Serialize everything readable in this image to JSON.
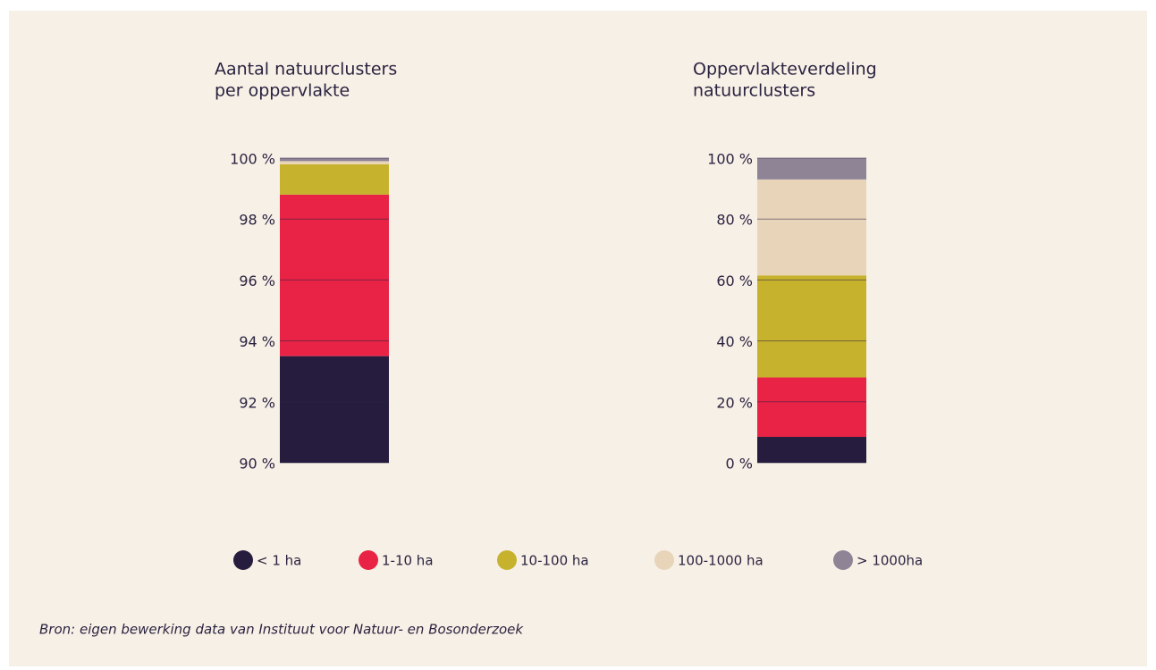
{
  "chart_data": {
    "type": "bar",
    "stacked": true,
    "series": [
      {
        "name": "< 1 ha",
        "color": "#261d3e",
        "values": [
          93.5,
          8.5
        ]
      },
      {
        "name": "1-10 ha",
        "color": "#e92345",
        "values": [
          5.3,
          19.5
        ]
      },
      {
        "name": "10-100 ha",
        "color": "#c7b22e",
        "values": [
          1.0,
          33.5
        ]
      },
      {
        "name": "100-1000 ha",
        "color": "#e8d5b9",
        "values": [
          0.1,
          31.5
        ]
      },
      {
        "name": "> 1000ha",
        "color": "#8e8496",
        "values": [
          0.1,
          7
        ]
      }
    ],
    "panels": [
      {
        "title": [
          "Aantal natuurclusters",
          "per oppervlakte"
        ],
        "ylim": [
          90,
          100
        ],
        "yticks": [
          {
            "value": 90,
            "label": "90 %"
          },
          {
            "value": 92,
            "label": "92 %"
          },
          {
            "value": 94,
            "label": "94 %"
          },
          {
            "value": 96,
            "label": "96 %"
          },
          {
            "value": 98,
            "label": "98 %"
          },
          {
            "value": 100,
            "label": "100 %"
          }
        ]
      },
      {
        "title": [
          "Oppervlakteverdeling",
          "natuurclusters"
        ],
        "ylim": [
          0,
          100
        ],
        "yticks": [
          {
            "value": 0,
            "label": "0 %"
          },
          {
            "value": 20,
            "label": "20 %"
          },
          {
            "value": 40,
            "label": "40 %"
          },
          {
            "value": 60,
            "label": "60 %"
          },
          {
            "value": 80,
            "label": "80 %"
          },
          {
            "value": 100,
            "label": "100 %"
          }
        ]
      }
    ],
    "grid": true
  },
  "source": "Bron: eigen bewerking data van Instituut voor Natuur- en Bosonderzoek"
}
